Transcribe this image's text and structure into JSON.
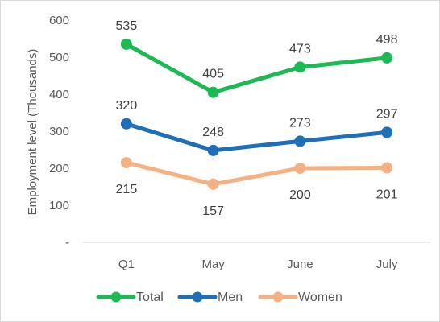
{
  "chart_data": {
    "type": "line",
    "categories": [
      "Q1",
      "May",
      "June",
      "July"
    ],
    "ylabel": "Employment level (Thousands)",
    "ylim": [
      0,
      600
    ],
    "y_ticks": [
      {
        "value": 0,
        "label": "-"
      },
      {
        "value": 100,
        "label": "100"
      },
      {
        "value": 200,
        "label": "200"
      },
      {
        "value": 300,
        "label": "300"
      },
      {
        "value": 400,
        "label": "400"
      },
      {
        "value": 500,
        "label": "500"
      },
      {
        "value": 600,
        "label": "600"
      }
    ],
    "grid": false,
    "legend_position": "bottom",
    "series": [
      {
        "name": "Total",
        "color": "#1db954",
        "values": [
          535,
          405,
          473,
          498
        ],
        "label_position": "above"
      },
      {
        "name": "Men",
        "color": "#1f6fb8",
        "values": [
          320,
          248,
          273,
          297
        ],
        "label_position": "above"
      },
      {
        "name": "Women",
        "color": "#f4b183",
        "values": [
          215,
          157,
          200,
          201
        ],
        "label_position": "below"
      }
    ]
  }
}
